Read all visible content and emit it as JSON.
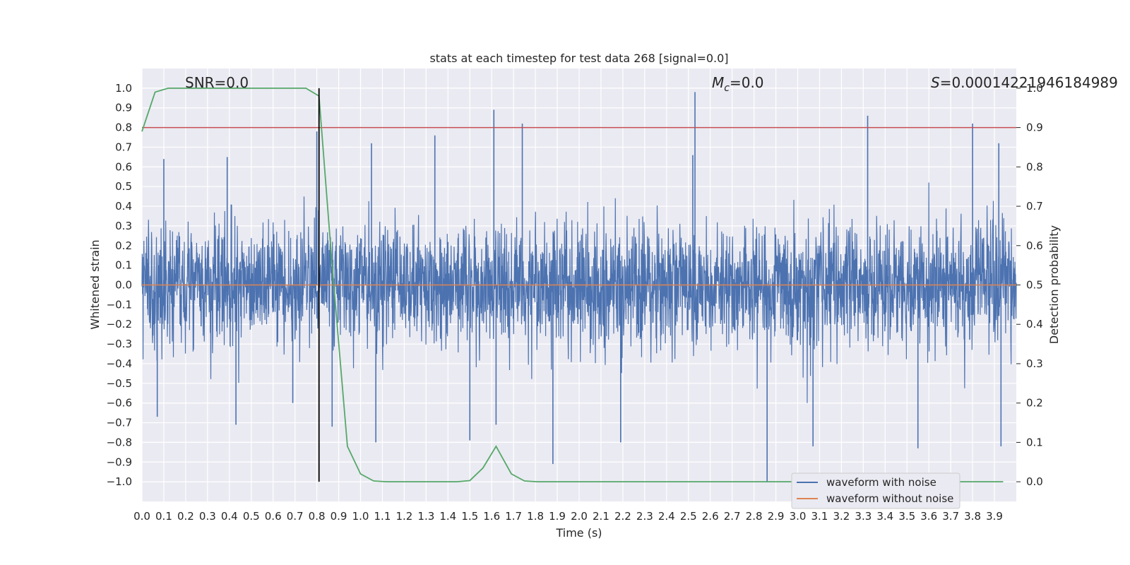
{
  "chart_data": {
    "type": "line",
    "title": "stats at each timestep for test data 268 [signal=0.0]",
    "xlabel": "Time (s)",
    "ylabel": "Whitened strain",
    "ylabel_right": "Detection probability",
    "xlim": [
      0.0,
      4.0
    ],
    "ylim": [
      -1.1,
      1.1
    ],
    "ylim_right": [
      -0.05,
      1.05
    ],
    "x_ticks": [
      "0.0",
      "0.1",
      "0.2",
      "0.3",
      "0.4",
      "0.5",
      "0.6",
      "0.7",
      "0.8",
      "0.9",
      "1.0",
      "1.1",
      "1.2",
      "1.3",
      "1.4",
      "1.5",
      "1.6",
      "1.7",
      "1.8",
      "1.9",
      "2.0",
      "2.1",
      "2.2",
      "2.3",
      "2.4",
      "2.5",
      "2.6",
      "2.7",
      "2.8",
      "2.9",
      "3.0",
      "3.1",
      "3.2",
      "3.3",
      "3.4",
      "3.5",
      "3.6",
      "3.7",
      "3.8",
      "3.9"
    ],
    "y_ticks": [
      "−1.0",
      "−0.9",
      "−0.8",
      "−0.7",
      "−0.6",
      "−0.5",
      "−0.4",
      "−0.3",
      "−0.2",
      "−0.1",
      "0.0",
      "0.1",
      "0.2",
      "0.3",
      "0.4",
      "0.5",
      "0.6",
      "0.7",
      "0.8",
      "0.9",
      "1.0"
    ],
    "y_ticks_right": [
      "0.0",
      "0.1",
      "0.2",
      "0.3",
      "0.4",
      "0.5",
      "0.6",
      "0.7",
      "0.8",
      "0.9",
      "1.0"
    ],
    "annotations": {
      "snr": "SNR=0.0",
      "mc_symbol": "M",
      "mc_subscript": "c",
      "mc_value": "=0.0",
      "s_symbol": "S",
      "s_value": "=0.00014221946184989"
    },
    "threshold_right": 0.9,
    "marker_time": 0.81,
    "series": [
      {
        "name": "waveform with noise",
        "color": "#4c72b0",
        "noise_amplitude": 0.25,
        "min": -1.0,
        "max": 0.98
      },
      {
        "name": "waveform without noise",
        "color": "#dd8452",
        "value": 0.0
      },
      {
        "name": "Detection probability",
        "color": "#55a868",
        "x": [
          0.0,
          0.06,
          0.12,
          0.19,
          0.25,
          0.31,
          0.37,
          0.44,
          0.5,
          0.56,
          0.62,
          0.69,
          0.75,
          0.81,
          0.87,
          0.94,
          1.0,
          1.06,
          1.12,
          1.19,
          1.25,
          1.31,
          1.37,
          1.44,
          1.5,
          1.56,
          1.62,
          1.69,
          1.75,
          1.81,
          1.87,
          1.94,
          2.0,
          2.5,
          3.0,
          3.5,
          3.94
        ],
        "values": [
          0.89,
          0.99,
          1.0,
          1.0,
          1.0,
          1.0,
          1.0,
          1.0,
          1.0,
          1.0,
          1.0,
          1.0,
          1.0,
          0.98,
          0.55,
          0.09,
          0.02,
          0.002,
          0.0,
          0.0,
          0.0,
          0.0,
          0.0,
          0.0,
          0.003,
          0.035,
          0.09,
          0.02,
          0.002,
          0.0,
          0.0,
          0.0,
          0.0,
          0.0,
          0.0,
          0.0,
          0.0
        ]
      },
      {
        "name": "threshold",
        "color": "#c44e52",
        "value": 0.9
      }
    ],
    "spikes": [
      {
        "x": 0.1,
        "y": 0.64
      },
      {
        "x": 0.07,
        "y": -0.67
      },
      {
        "x": 0.39,
        "y": 0.65
      },
      {
        "x": 0.43,
        "y": -0.71
      },
      {
        "x": 0.69,
        "y": -0.6
      },
      {
        "x": 0.8,
        "y": 0.78
      },
      {
        "x": 0.87,
        "y": -0.72
      },
      {
        "x": 1.05,
        "y": 0.72
      },
      {
        "x": 1.07,
        "y": -0.8
      },
      {
        "x": 1.34,
        "y": 0.76
      },
      {
        "x": 1.5,
        "y": -0.79
      },
      {
        "x": 1.61,
        "y": 0.89
      },
      {
        "x": 1.62,
        "y": -0.71
      },
      {
        "x": 1.74,
        "y": 0.82
      },
      {
        "x": 1.88,
        "y": -0.91
      },
      {
        "x": 2.19,
        "y": -0.8
      },
      {
        "x": 2.53,
        "y": 0.98
      },
      {
        "x": 2.52,
        "y": 0.66
      },
      {
        "x": 2.86,
        "y": -1.0
      },
      {
        "x": 3.07,
        "y": -0.82
      },
      {
        "x": 3.32,
        "y": 0.86
      },
      {
        "x": 3.55,
        "y": -0.83
      },
      {
        "x": 3.8,
        "y": 0.82
      },
      {
        "x": 3.93,
        "y": -0.82
      },
      {
        "x": 3.92,
        "y": 0.72
      }
    ],
    "legend": {
      "position": "lower-right",
      "entries": [
        "waveform with noise",
        "waveform without noise"
      ]
    }
  }
}
